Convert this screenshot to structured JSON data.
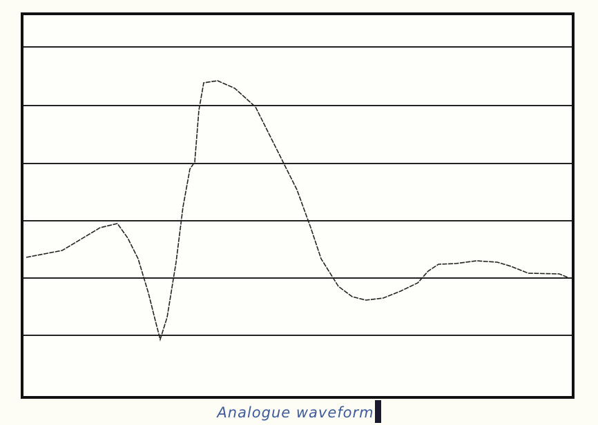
{
  "caption": "Analogue waveform"
}
